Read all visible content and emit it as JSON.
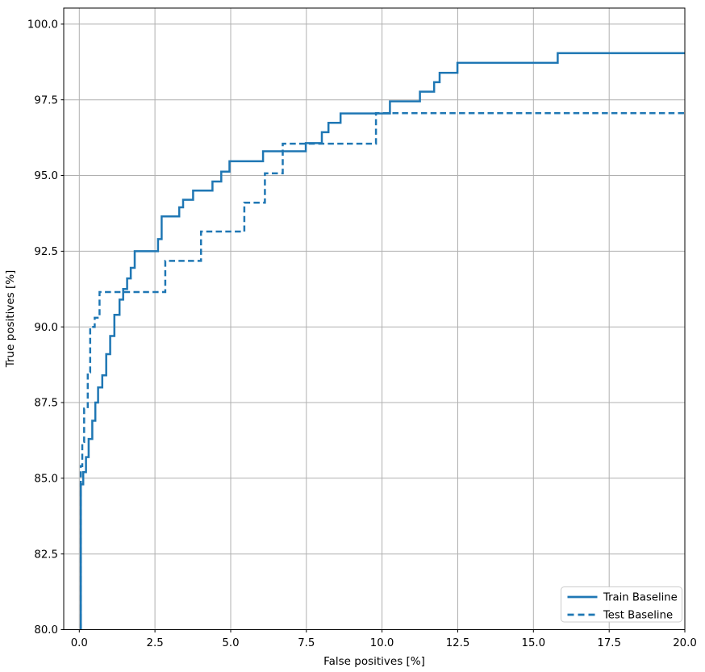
{
  "chart_data": {
    "type": "line",
    "title": "",
    "xlabel": "False positives [%]",
    "ylabel": "True positives [%]",
    "xlim": [
      -0.514,
      20.0
    ],
    "ylim": [
      80.0,
      100.53
    ],
    "grid": true,
    "grid_color": "#b0b0b0",
    "axis_color": "#000000",
    "line_color": "#1f77b4",
    "x_ticks": {
      "values": [
        0,
        2.5,
        5,
        7.5,
        10,
        12.5,
        15,
        17.5,
        20
      ],
      "labels": [
        "0.0",
        "2.5",
        "5.0",
        "7.5",
        "10.0",
        "12.5",
        "15.0",
        "17.5",
        "20.0"
      ]
    },
    "y_ticks": {
      "values": [
        80,
        82.5,
        85,
        87.5,
        90,
        92.5,
        95,
        97.5,
        100
      ],
      "labels": [
        "80.0",
        "82.5",
        "85.0",
        "87.5",
        "90.0",
        "92.5",
        "95.0",
        "97.5",
        "100.0"
      ]
    },
    "legend": {
      "position": "lower right",
      "entries": [
        "Train Baseline",
        "Test Baseline"
      ]
    },
    "series": [
      {
        "name": "Train Baseline",
        "line_style": "solid",
        "color": "#1f77b4",
        "points": [
          [
            0.05,
            80.0
          ],
          [
            0.05,
            84.8
          ],
          [
            0.13,
            84.8
          ],
          [
            0.13,
            85.2
          ],
          [
            0.22,
            85.2
          ],
          [
            0.22,
            85.7
          ],
          [
            0.31,
            85.7
          ],
          [
            0.31,
            86.3
          ],
          [
            0.43,
            86.3
          ],
          [
            0.43,
            86.9
          ],
          [
            0.53,
            86.9
          ],
          [
            0.53,
            87.5
          ],
          [
            0.62,
            87.5
          ],
          [
            0.62,
            88.0
          ],
          [
            0.76,
            88.0
          ],
          [
            0.76,
            88.4
          ],
          [
            0.89,
            88.4
          ],
          [
            0.89,
            89.1
          ],
          [
            1.02,
            89.1
          ],
          [
            1.02,
            89.7
          ],
          [
            1.16,
            89.7
          ],
          [
            1.16,
            90.4
          ],
          [
            1.33,
            90.4
          ],
          [
            1.33,
            90.9
          ],
          [
            1.45,
            90.9
          ],
          [
            1.45,
            91.25
          ],
          [
            1.58,
            91.25
          ],
          [
            1.58,
            91.6
          ],
          [
            1.7,
            91.6
          ],
          [
            1.7,
            91.95
          ],
          [
            1.83,
            91.95
          ],
          [
            1.83,
            92.5
          ],
          [
            2.6,
            92.5
          ],
          [
            2.6,
            92.9
          ],
          [
            2.72,
            92.9
          ],
          [
            2.72,
            93.65
          ],
          [
            3.3,
            93.65
          ],
          [
            3.3,
            93.95
          ],
          [
            3.43,
            93.95
          ],
          [
            3.43,
            94.2
          ],
          [
            3.76,
            94.2
          ],
          [
            3.76,
            94.5
          ],
          [
            4.4,
            94.5
          ],
          [
            4.4,
            94.8
          ],
          [
            4.69,
            94.8
          ],
          [
            4.69,
            95.13
          ],
          [
            4.96,
            95.13
          ],
          [
            4.96,
            95.47
          ],
          [
            6.07,
            95.47
          ],
          [
            6.07,
            95.8
          ],
          [
            7.48,
            95.8
          ],
          [
            7.48,
            96.07
          ],
          [
            8.01,
            96.07
          ],
          [
            8.01,
            96.43
          ],
          [
            8.23,
            96.43
          ],
          [
            8.23,
            96.74
          ],
          [
            8.63,
            96.74
          ],
          [
            8.63,
            97.05
          ],
          [
            10.26,
            97.05
          ],
          [
            10.26,
            97.45
          ],
          [
            11.25,
            97.45
          ],
          [
            11.25,
            97.77
          ],
          [
            11.72,
            97.77
          ],
          [
            11.72,
            98.08
          ],
          [
            11.9,
            98.08
          ],
          [
            11.9,
            98.39
          ],
          [
            12.49,
            98.39
          ],
          [
            12.49,
            98.72
          ],
          [
            15.8,
            98.72
          ],
          [
            15.8,
            99.04
          ],
          [
            20.0,
            99.04
          ]
        ]
      },
      {
        "name": "Test Baseline",
        "line_style": "dashed",
        "color": "#1f77b4",
        "points": [
          [
            0.05,
            80.0
          ],
          [
            0.05,
            85.4
          ],
          [
            0.1,
            85.4
          ],
          [
            0.1,
            86.2
          ],
          [
            0.16,
            86.2
          ],
          [
            0.16,
            87.3
          ],
          [
            0.28,
            87.3
          ],
          [
            0.28,
            88.5
          ],
          [
            0.36,
            88.5
          ],
          [
            0.36,
            90.0
          ],
          [
            0.51,
            90.0
          ],
          [
            0.51,
            90.3
          ],
          [
            0.67,
            90.3
          ],
          [
            0.67,
            91.15
          ],
          [
            2.84,
            91.15
          ],
          [
            2.84,
            92.18
          ],
          [
            4.02,
            92.18
          ],
          [
            4.02,
            93.15
          ],
          [
            5.45,
            93.15
          ],
          [
            5.45,
            94.1
          ],
          [
            6.13,
            94.1
          ],
          [
            6.13,
            95.07
          ],
          [
            6.72,
            95.07
          ],
          [
            6.72,
            96.05
          ],
          [
            9.8,
            96.05
          ],
          [
            9.8,
            97.06
          ],
          [
            20.0,
            97.06
          ]
        ]
      }
    ]
  }
}
